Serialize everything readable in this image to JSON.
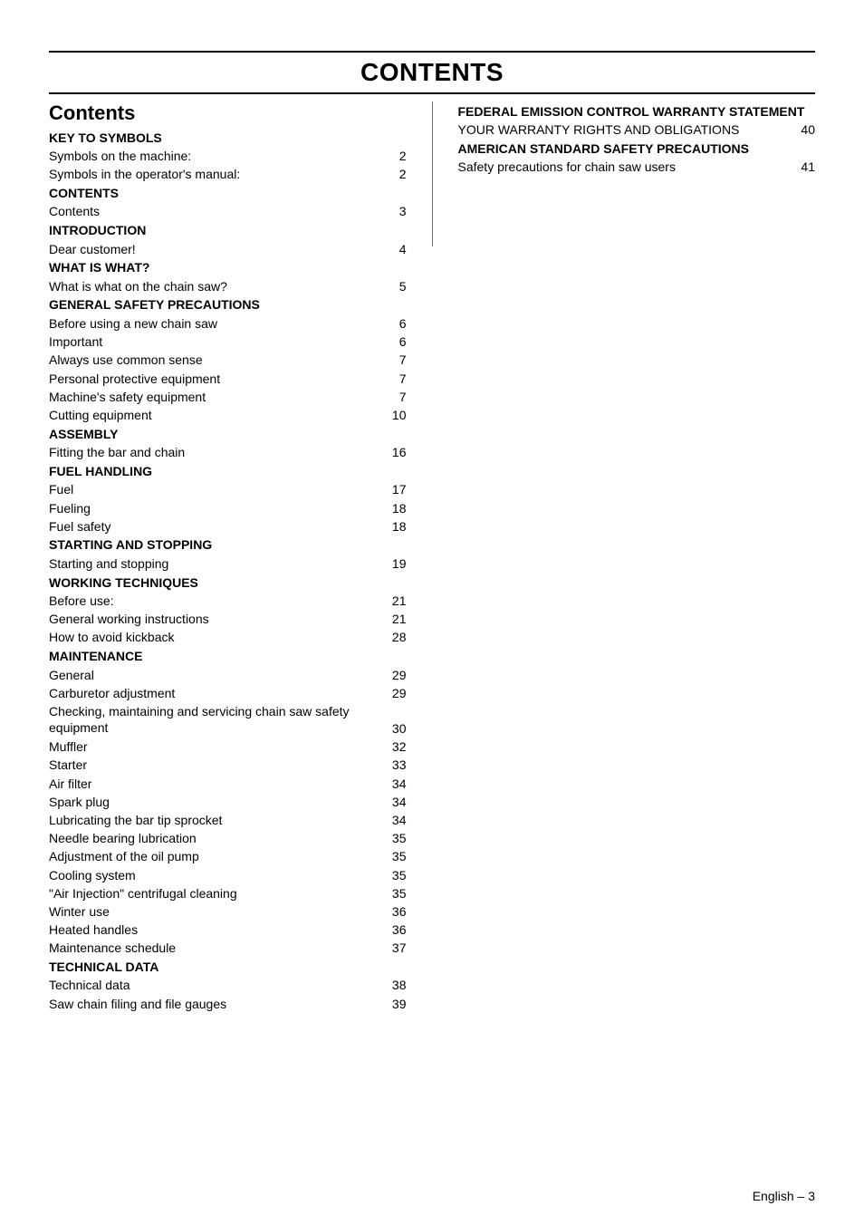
{
  "page": {
    "title": "CONTENTS",
    "section_title": "Contents",
    "footer": "English – 3"
  },
  "left": [
    {
      "type": "head",
      "text": "KEY TO SYMBOLS"
    },
    {
      "type": "entry",
      "label": "Symbols on the machine:",
      "page": "2"
    },
    {
      "type": "entry",
      "label": "Symbols in the operator's manual:",
      "page": "2"
    },
    {
      "type": "head",
      "text": "CONTENTS"
    },
    {
      "type": "entry",
      "label": "Contents",
      "page": "3"
    },
    {
      "type": "head",
      "text": "INTRODUCTION"
    },
    {
      "type": "entry",
      "label": "Dear customer!",
      "page": "4"
    },
    {
      "type": "head",
      "text": "WHAT IS WHAT?"
    },
    {
      "type": "entry",
      "label": "What is what on the chain saw?",
      "page": "5"
    },
    {
      "type": "head",
      "text": "GENERAL SAFETY PRECAUTIONS"
    },
    {
      "type": "entry",
      "label": "Before using a new chain saw",
      "page": "6"
    },
    {
      "type": "entry",
      "label": "Important",
      "page": "6"
    },
    {
      "type": "entry",
      "label": "Always use common sense",
      "page": "7"
    },
    {
      "type": "entry",
      "label": "Personal protective equipment",
      "page": "7"
    },
    {
      "type": "entry",
      "label": "Machine's safety equipment",
      "page": "7"
    },
    {
      "type": "entry",
      "label": "Cutting equipment",
      "page": "10"
    },
    {
      "type": "head",
      "text": "ASSEMBLY"
    },
    {
      "type": "entry",
      "label": "Fitting the bar and chain",
      "page": "16"
    },
    {
      "type": "head",
      "text": "FUEL HANDLING"
    },
    {
      "type": "entry",
      "label": "Fuel",
      "page": "17"
    },
    {
      "type": "entry",
      "label": "Fueling",
      "page": "18"
    },
    {
      "type": "entry",
      "label": "Fuel safety",
      "page": "18"
    },
    {
      "type": "head",
      "text": "STARTING AND STOPPING"
    },
    {
      "type": "entry",
      "label": "Starting and stopping",
      "page": "19"
    },
    {
      "type": "head",
      "text": "WORKING TECHNIQUES"
    },
    {
      "type": "entry",
      "label": "Before use:",
      "page": "21"
    },
    {
      "type": "entry",
      "label": "General working instructions",
      "page": "21"
    },
    {
      "type": "entry",
      "label": "How to avoid kickback",
      "page": "28"
    },
    {
      "type": "head",
      "text": "MAINTENANCE"
    },
    {
      "type": "entry",
      "label": "General",
      "page": "29"
    },
    {
      "type": "entry",
      "label": "Carburetor adjustment",
      "page": "29"
    },
    {
      "type": "entry",
      "label": "Checking, maintaining and servicing chain saw safety equipment",
      "page": "30",
      "twoLine": true
    },
    {
      "type": "entry",
      "label": "Muffler",
      "page": "32"
    },
    {
      "type": "entry",
      "label": "Starter",
      "page": "33"
    },
    {
      "type": "entry",
      "label": "Air filter",
      "page": "34"
    },
    {
      "type": "entry",
      "label": "Spark plug",
      "page": "34"
    },
    {
      "type": "entry",
      "label": "Lubricating the bar tip sprocket",
      "page": "34"
    },
    {
      "type": "entry",
      "label": "Needle bearing lubrication",
      "page": "35"
    },
    {
      "type": "entry",
      "label": "Adjustment of the oil pump",
      "page": "35"
    },
    {
      "type": "entry",
      "label": "Cooling system",
      "page": "35"
    },
    {
      "type": "entry",
      "label": "\"Air Injection\" centrifugal cleaning",
      "page": "35"
    },
    {
      "type": "entry",
      "label": "Winter use",
      "page": "36"
    },
    {
      "type": "entry",
      "label": "Heated handles",
      "page": "36"
    },
    {
      "type": "entry",
      "label": "Maintenance schedule",
      "page": "37"
    },
    {
      "type": "head",
      "text": "TECHNICAL DATA"
    },
    {
      "type": "entry",
      "label": "Technical data",
      "page": "38"
    },
    {
      "type": "entry",
      "label": "Saw chain filing and file gauges",
      "page": "39"
    }
  ],
  "right": [
    {
      "type": "head",
      "text": "FEDERAL EMISSION CONTROL WARRANTY STATEMENT"
    },
    {
      "type": "entry",
      "label": "YOUR WARRANTY RIGHTS AND OBLIGATIONS",
      "page": "40"
    },
    {
      "type": "head",
      "text": "AMERICAN STANDARD SAFETY PRECAUTIONS"
    },
    {
      "type": "entry",
      "label": "Safety precautions for chain saw users",
      "page": "41"
    }
  ]
}
